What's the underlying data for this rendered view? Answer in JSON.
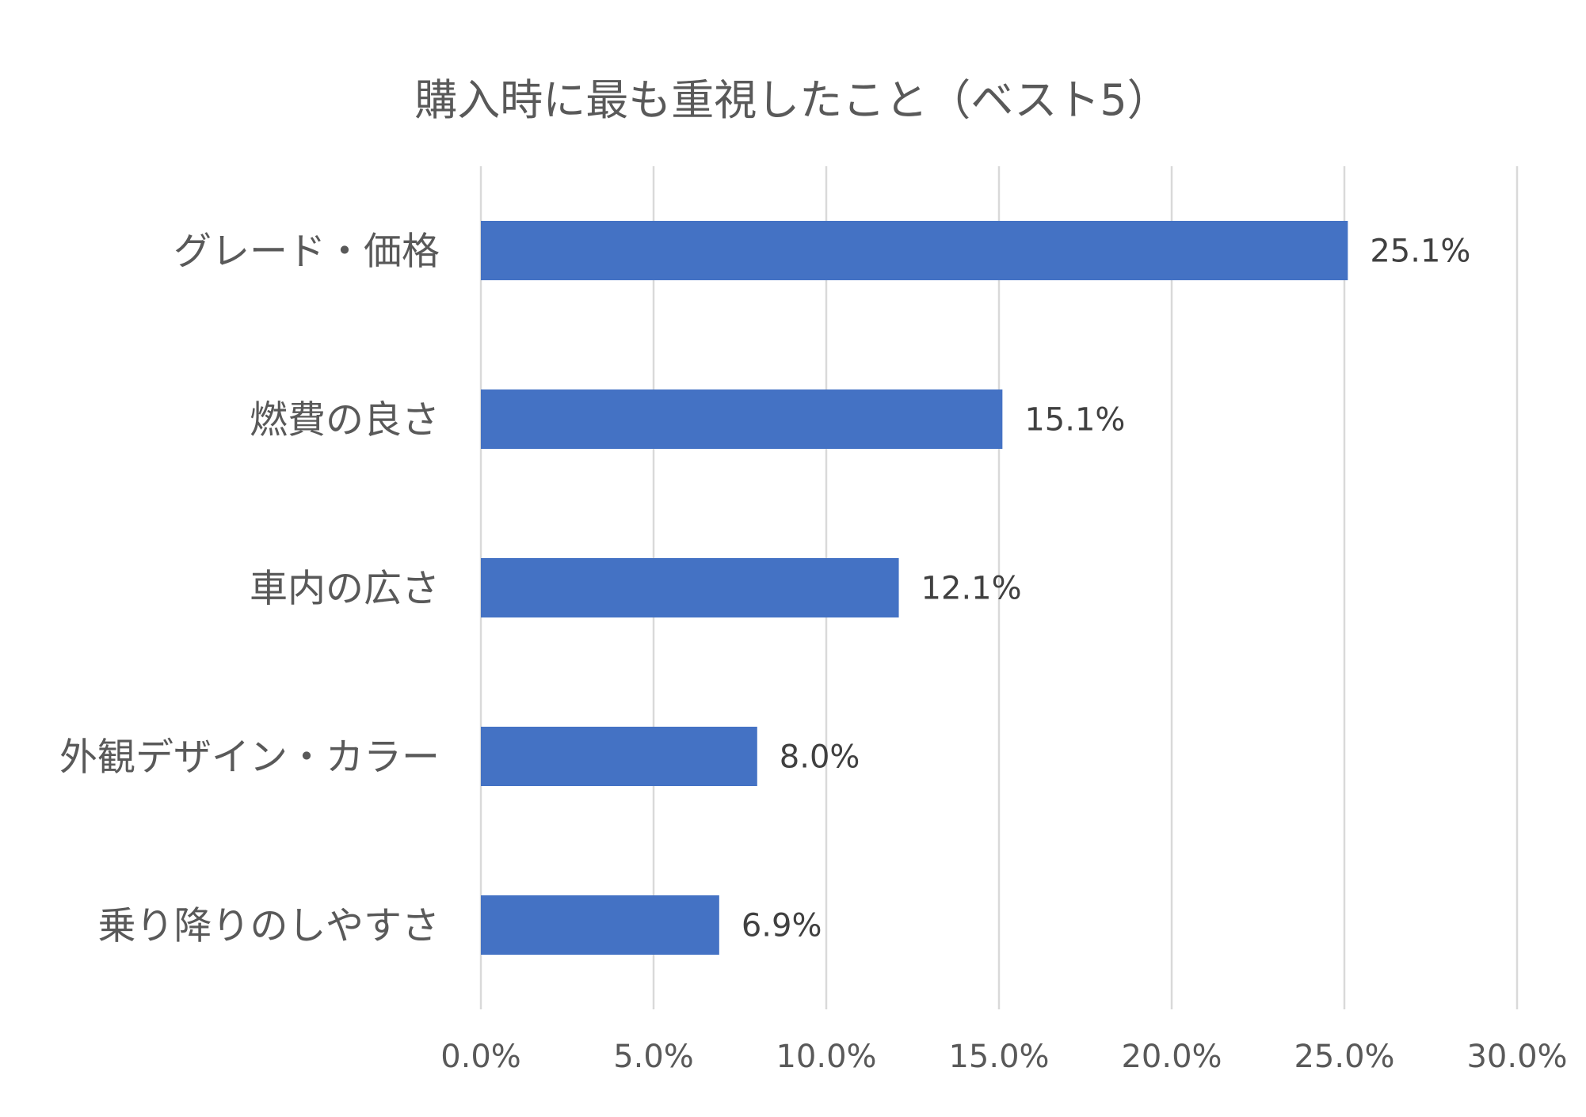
{
  "chart_data": {
    "type": "bar",
    "orientation": "horizontal",
    "title": "購入時に最も重視したこと（ベスト5）",
    "categories": [
      "グレード・価格",
      "燃費の良さ",
      "車内の広さ",
      "外観デザイン・カラー",
      "乗り降りのしやすさ"
    ],
    "values": [
      25.1,
      15.1,
      12.1,
      8.0,
      6.9
    ],
    "data_labels": [
      "25.1%",
      "15.1%",
      "12.1%",
      "8.0%",
      "6.9%"
    ],
    "xlim": [
      0,
      30
    ],
    "x_ticks": [
      0,
      5,
      10,
      15,
      20,
      25,
      30
    ],
    "x_tick_labels": [
      "0.0%",
      "5.0%",
      "10.0%",
      "15.0%",
      "20.0%",
      "25.0%",
      "30.0%"
    ],
    "grid": true,
    "legend": "none",
    "bar_color": "#4472c4"
  }
}
